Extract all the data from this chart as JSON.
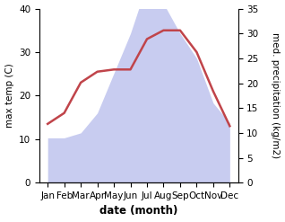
{
  "months": [
    "Jan",
    "Feb",
    "Mar",
    "Apr",
    "May",
    "Jun",
    "Jul",
    "Aug",
    "Sep",
    "Oct",
    "Nov",
    "Dec"
  ],
  "month_indices": [
    0,
    1,
    2,
    3,
    4,
    5,
    6,
    7,
    8,
    9,
    10,
    11
  ],
  "temperature": [
    13.5,
    16,
    23,
    25.5,
    26,
    26,
    33,
    35,
    35,
    30,
    21,
    13
  ],
  "precipitation": [
    9,
    9,
    10,
    14,
    22,
    30,
    40,
    36,
    30,
    25,
    16,
    12
  ],
  "temp_color": "#c0444a",
  "precip_fill_color": "#c8ccf0",
  "left_ylim": [
    0,
    40
  ],
  "right_ylim": [
    0,
    35
  ],
  "left_yticks": [
    0,
    10,
    20,
    30,
    40
  ],
  "right_yticks": [
    0,
    5,
    10,
    15,
    20,
    25,
    30,
    35
  ],
  "xlabel": "date (month)",
  "ylabel_left": "max temp (C)",
  "ylabel_right": "med. precipitation (kg/m2)",
  "bg_color": "#ffffff"
}
